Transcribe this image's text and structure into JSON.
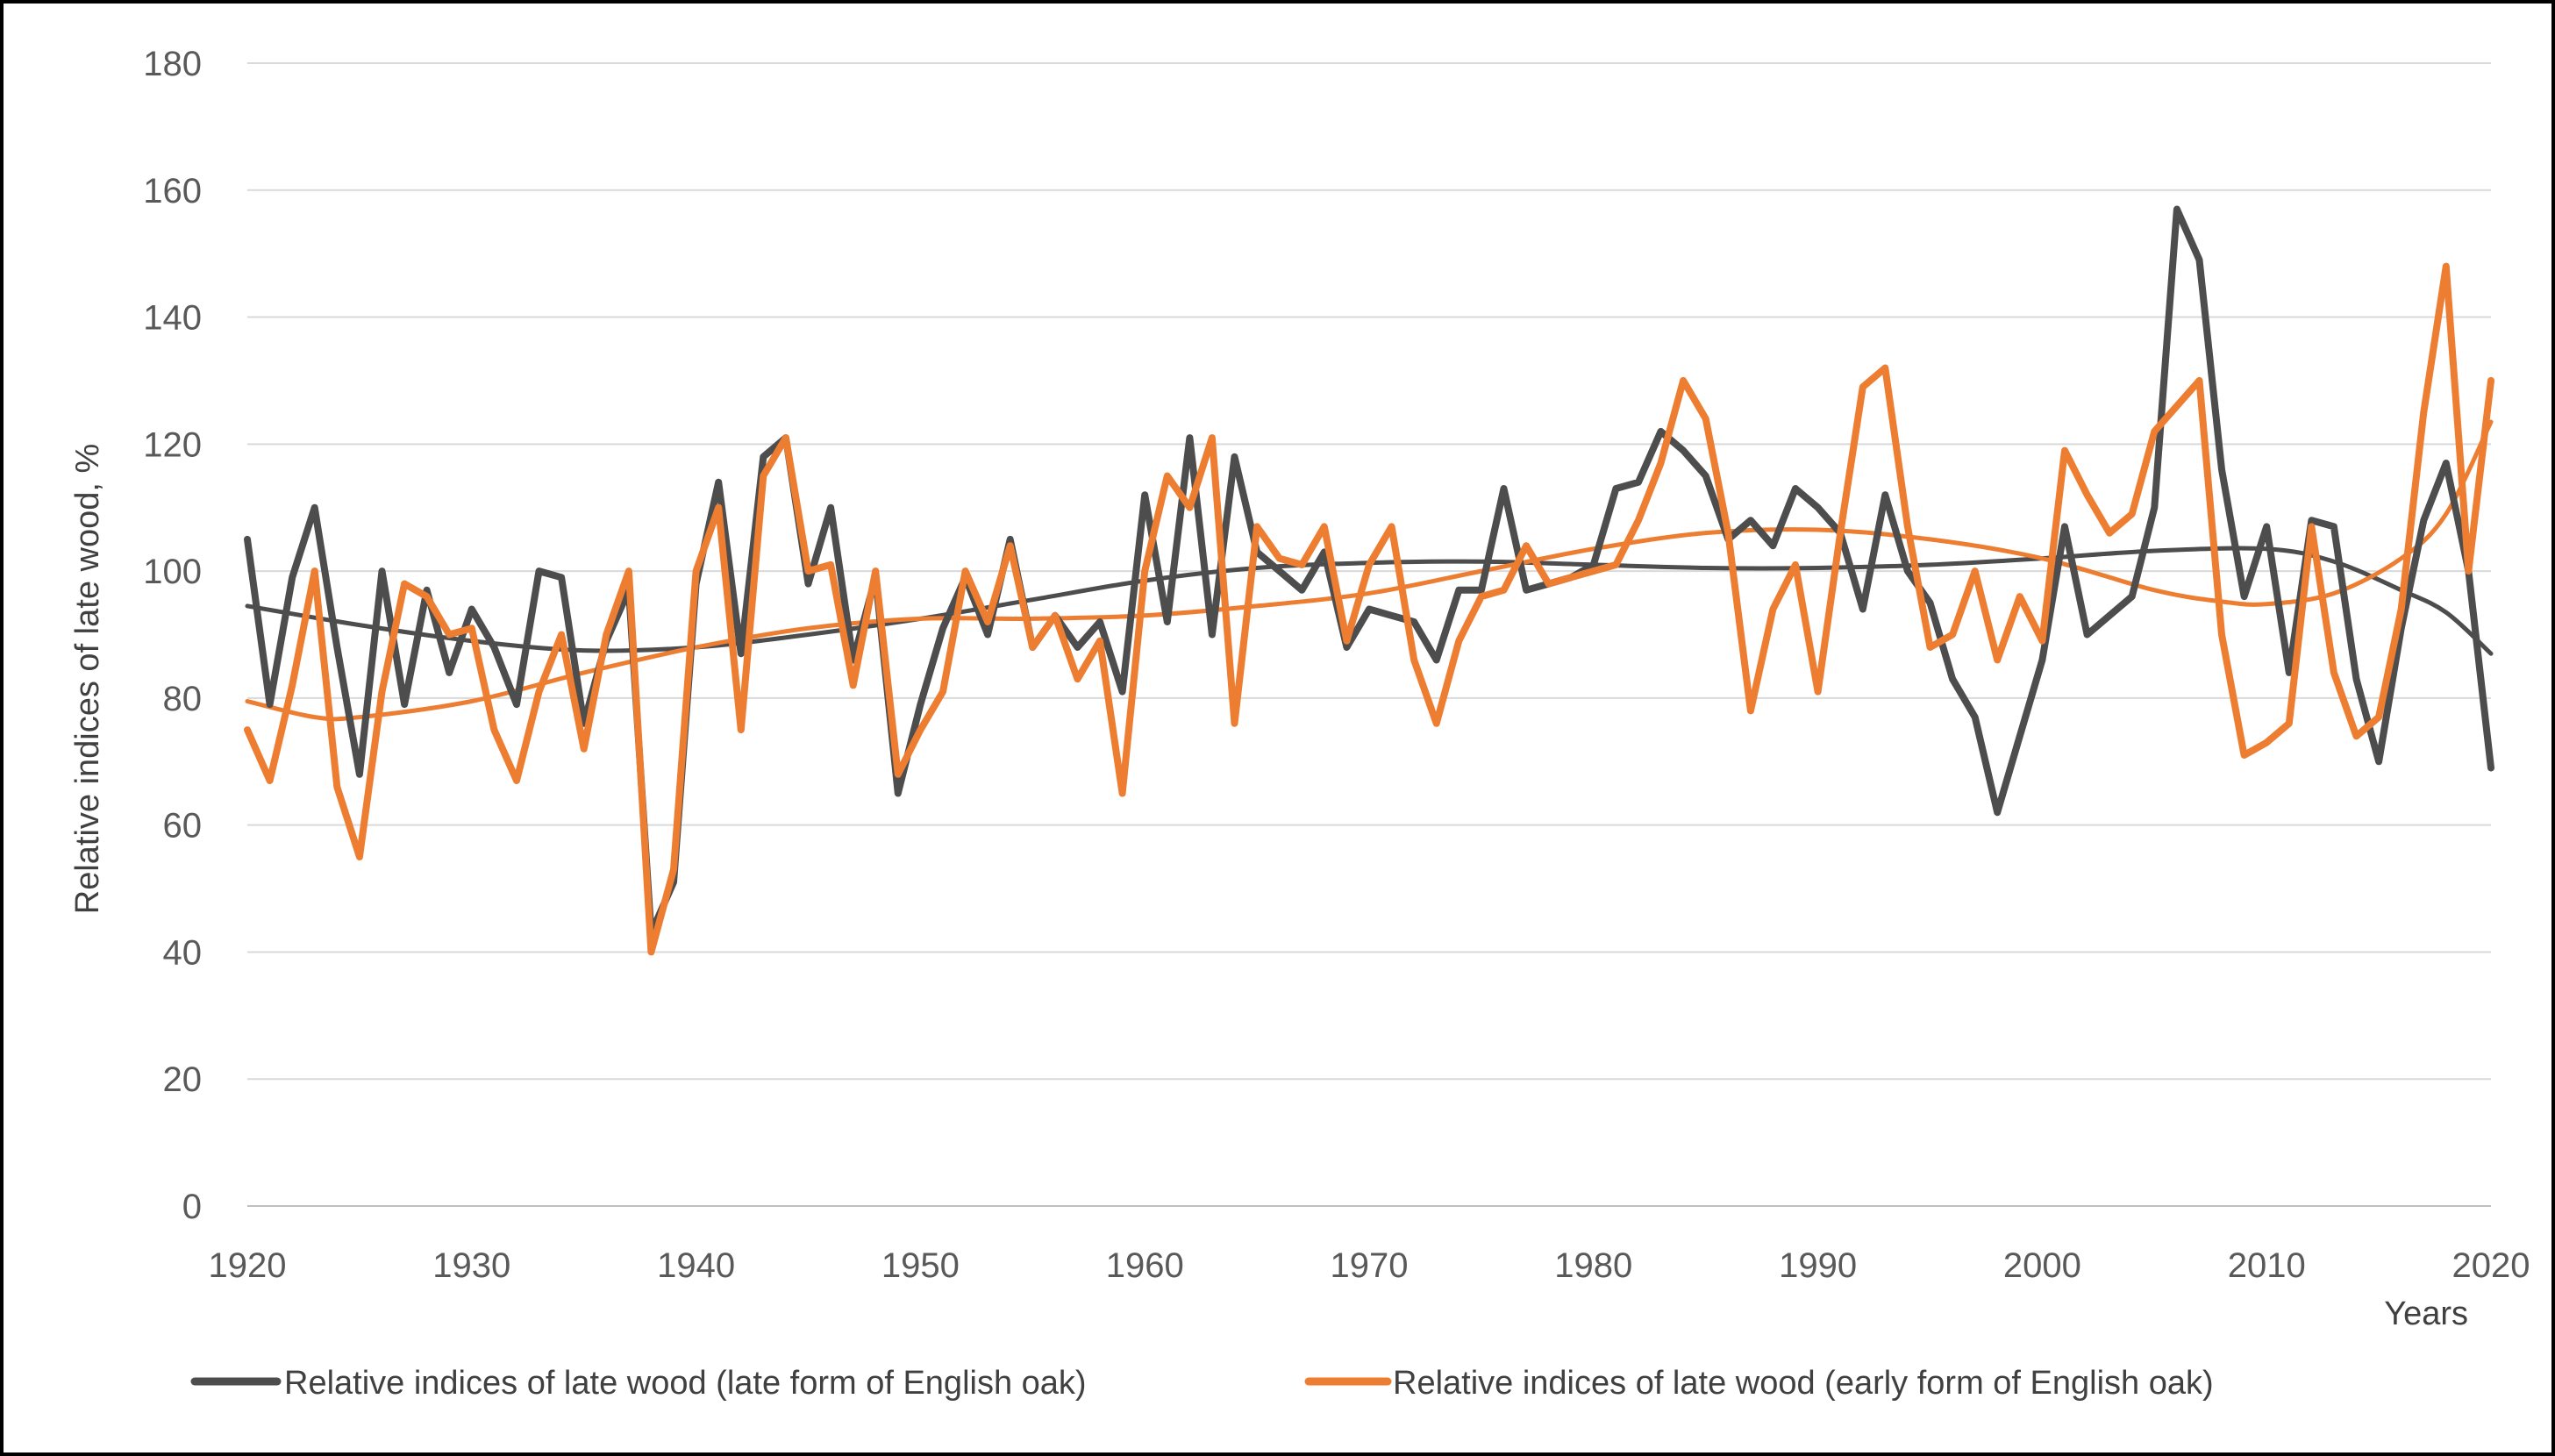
{
  "chart_data": {
    "type": "line",
    "title": "",
    "xlabel": "Years",
    "ylabel": "Relative indices of late wood, %",
    "xlim": [
      1920,
      2020
    ],
    "ylim": [
      0,
      180
    ],
    "x_ticks": [
      "1920",
      "1930",
      "1940",
      "1950",
      "1960",
      "1970",
      "1980",
      "1990",
      "2000",
      "2010",
      "2020"
    ],
    "y_ticks": [
      "0",
      "20",
      "40",
      "60",
      "80",
      "100",
      "120",
      "140",
      "160",
      "180"
    ],
    "grid": "horizontal",
    "legend_position": "bottom",
    "x": [
      1920,
      1921,
      1922,
      1923,
      1924,
      1925,
      1926,
      1927,
      1928,
      1929,
      1930,
      1931,
      1932,
      1933,
      1934,
      1935,
      1936,
      1937,
      1938,
      1939,
      1940,
      1941,
      1942,
      1943,
      1944,
      1945,
      1946,
      1947,
      1948,
      1949,
      1950,
      1951,
      1952,
      1953,
      1954,
      1955,
      1956,
      1957,
      1958,
      1959,
      1960,
      1961,
      1962,
      1963,
      1964,
      1965,
      1966,
      1967,
      1968,
      1969,
      1970,
      1971,
      1972,
      1973,
      1974,
      1975,
      1976,
      1977,
      1978,
      1979,
      1980,
      1981,
      1982,
      1983,
      1984,
      1985,
      1986,
      1987,
      1988,
      1989,
      1990,
      1991,
      1992,
      1993,
      1994,
      1995,
      1996,
      1997,
      1998,
      1999,
      2000,
      2001,
      2002,
      2003,
      2004,
      2005,
      2006,
      2007,
      2008,
      2009,
      2010,
      2011,
      2012,
      2013,
      2014,
      2015,
      2016,
      2017,
      2018,
      2019,
      2020
    ],
    "series": [
      {
        "name": "Relative indices of late wood (late form of English oak)",
        "color": "#4d4d4d",
        "values": [
          105,
          79,
          99,
          110,
          88,
          68,
          100,
          79,
          97,
          84,
          94,
          88,
          79,
          100,
          99,
          76,
          89,
          97,
          43,
          51,
          98,
          114,
          87,
          118,
          121,
          98,
          110,
          86,
          99,
          65,
          79,
          91,
          99,
          90,
          105,
          88,
          93,
          88,
          92,
          81,
          112,
          92,
          121,
          90,
          118,
          103,
          100,
          97,
          103,
          88,
          94,
          93,
          92,
          86,
          97,
          97,
          113,
          97,
          98,
          99,
          101,
          113,
          114,
          122,
          119,
          115,
          105,
          108,
          104,
          113,
          110,
          106,
          94,
          112,
          100,
          95,
          83,
          77,
          62,
          74,
          86,
          107,
          90,
          93,
          96,
          110,
          157,
          149,
          116,
          96,
          107,
          84,
          108,
          107,
          83,
          70,
          91,
          108,
          117,
          100,
          69
        ]
      },
      {
        "name": "Relative indices of late wood (early form of English oak)",
        "color": "#ed7d31",
        "values": [
          75,
          67,
          82,
          100,
          66,
          55,
          81,
          98,
          96,
          90,
          91,
          75,
          67,
          81,
          90,
          72,
          90,
          100,
          40,
          53,
          100,
          110,
          75,
          115,
          121,
          100,
          101,
          82,
          100,
          68,
          75,
          81,
          100,
          92,
          104,
          88,
          93,
          83,
          89,
          65,
          100,
          115,
          110,
          121,
          76,
          107,
          102,
          101,
          107,
          89,
          101,
          107,
          86,
          76,
          89,
          96,
          97,
          104,
          98,
          99,
          100,
          101,
          108,
          117,
          130,
          124,
          106,
          78,
          94,
          101,
          81,
          106,
          129,
          132,
          107,
          88,
          90,
          100,
          86,
          96,
          89,
          119,
          112,
          106,
          109,
          122,
          126,
          130,
          90,
          71,
          73,
          76,
          107,
          84,
          74,
          77,
          94,
          125,
          148,
          100,
          130
        ]
      }
    ],
    "trendlines": [
      {
        "name": "trend-late-form",
        "color": "#4d4d4d",
        "x": [
          1920,
          1925,
          1930,
          1935,
          1940,
          1945,
          1950,
          1955,
          1960,
          1965,
          1970,
          1975,
          1980,
          1985,
          1990,
          1995,
          2000,
          2005,
          2010,
          2013,
          2016,
          2018,
          2020
        ],
        "values": [
          94.5,
          91.5,
          89,
          87.5,
          88,
          90,
          92.5,
          95.5,
          98.5,
          100.5,
          101.3,
          101.5,
          101,
          100.5,
          100.5,
          101,
          102,
          103.2,
          103.5,
          101.5,
          97,
          93.5,
          87
        ]
      },
      {
        "name": "trend-early-form",
        "color": "#ed7d31",
        "x": [
          1920,
          1923,
          1925,
          1930,
          1935,
          1940,
          1945,
          1950,
          1955,
          1960,
          1965,
          1970,
          1975,
          1980,
          1985,
          1990,
          1995,
          2000,
          2005,
          2008,
          2010,
          2013,
          2016,
          2018,
          2020
        ],
        "values": [
          79.5,
          77,
          77,
          79.5,
          84,
          88,
          91,
          92.5,
          92.5,
          93,
          94.5,
          96.5,
          100,
          103.5,
          106,
          106.5,
          105,
          102,
          97,
          95.2,
          94.8,
          96.5,
          102,
          109,
          123.5
        ]
      }
    ]
  }
}
